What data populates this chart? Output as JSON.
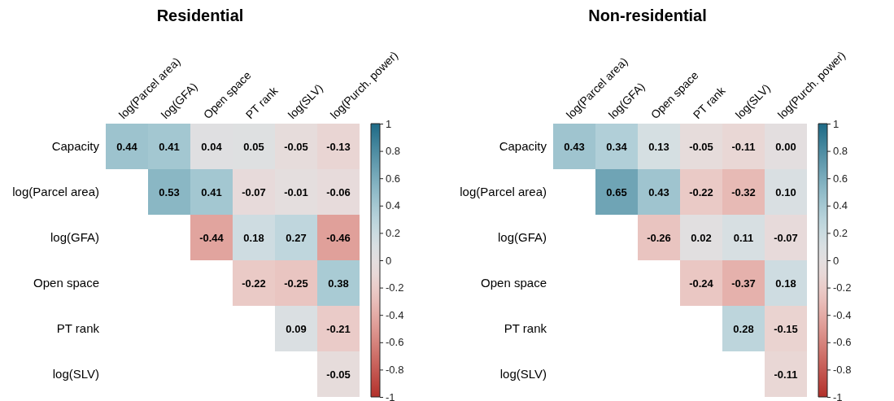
{
  "chart_data": [
    {
      "type": "heatmap",
      "title": "Residential",
      "categories": [
        "log(Parcel area)",
        "log(GFA)",
        "Open space",
        "PT rank",
        "log(SLV)",
        "log(Purch. power)"
      ],
      "y_categories": [
        "Capacity",
        "log(Parcel area)",
        "log(GFA)",
        "Open space",
        "PT rank",
        "log(SLV)"
      ],
      "cells": [
        [
          0.44,
          0.41,
          0.04,
          0.05,
          -0.05,
          -0.13
        ],
        [
          null,
          0.53,
          0.41,
          -0.07,
          -0.01,
          -0.06
        ],
        [
          null,
          null,
          -0.44,
          0.18,
          0.27,
          -0.46
        ],
        [
          null,
          null,
          null,
          -0.22,
          -0.25,
          0.38
        ],
        [
          null,
          null,
          null,
          null,
          0.09,
          -0.21
        ],
        [
          null,
          null,
          null,
          null,
          null,
          -0.05
        ]
      ],
      "cell_labels": [
        [
          "0.44",
          "0.41",
          "0.04",
          "0.05",
          "-0.05",
          "-0.13"
        ],
        [
          null,
          "0.53",
          "0.41",
          "-0.07",
          "-0.01",
          "-0.06"
        ],
        [
          null,
          null,
          "-0.44",
          "0.18",
          "0.27",
          "-0.46"
        ],
        [
          null,
          null,
          null,
          "-0.22",
          "-0.25",
          "0.38"
        ],
        [
          null,
          null,
          null,
          null,
          "0.09",
          "-0.21"
        ],
        [
          null,
          null,
          null,
          null,
          null,
          "-0.05"
        ]
      ],
      "clim": [
        -1,
        1
      ],
      "cticks": [
        -1,
        -0.8,
        -0.6,
        -0.4,
        -0.2,
        0,
        0.2,
        0.4,
        0.6,
        0.8,
        1
      ]
    },
    {
      "type": "heatmap",
      "title": "Non-residential",
      "categories": [
        "log(Parcel area)",
        "log(GFA)",
        "Open space",
        "PT rank",
        "log(SLV)",
        "log(Purch. power)"
      ],
      "y_categories": [
        "Capacity",
        "log(Parcel area)",
        "log(GFA)",
        "Open space",
        "PT rank",
        "log(SLV)"
      ],
      "cells": [
        [
          0.43,
          0.34,
          0.13,
          -0.05,
          -0.11,
          0.0
        ],
        [
          null,
          0.65,
          0.43,
          -0.22,
          -0.32,
          0.1
        ],
        [
          null,
          null,
          -0.26,
          0.02,
          0.11,
          -0.07
        ],
        [
          null,
          null,
          null,
          -0.24,
          -0.37,
          0.18
        ],
        [
          null,
          null,
          null,
          null,
          0.28,
          -0.15
        ],
        [
          null,
          null,
          null,
          null,
          null,
          -0.11
        ]
      ],
      "cell_labels": [
        [
          "0.43",
          "0.34",
          "0.13",
          "-0.05",
          "-0.11",
          "0.00"
        ],
        [
          null,
          "0.65",
          "0.43",
          "-0.22",
          "-0.32",
          "0.10"
        ],
        [
          null,
          null,
          "-0.26",
          "0.02",
          "0.11",
          "-0.07"
        ],
        [
          null,
          null,
          null,
          "-0.24",
          "-0.37",
          "0.18"
        ],
        [
          null,
          null,
          null,
          null,
          "0.28",
          "-0.15"
        ],
        [
          null,
          null,
          null,
          null,
          null,
          "-0.11"
        ]
      ],
      "clim": [
        -1,
        1
      ],
      "cticks": [
        -1,
        -0.8,
        -0.6,
        -0.4,
        -0.2,
        0,
        0.2,
        0.4,
        0.6,
        0.8,
        1
      ]
    }
  ]
}
